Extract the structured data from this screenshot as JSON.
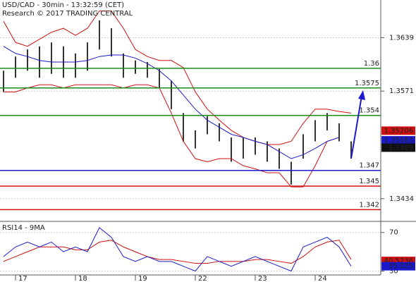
{
  "chart_data": [
    {
      "type": "candlestick",
      "title": "USD/CAD - 30min - 13:32:59 (CET)",
      "subtitle": "Research © 2017 TRADING CENTRAL",
      "categories": [
        null,
        "17",
        null,
        null,
        null,
        null,
        "18",
        null,
        null,
        null,
        null,
        "19",
        null,
        null,
        null,
        null,
        "22",
        null,
        null,
        null,
        null,
        "23",
        null,
        null,
        null,
        null,
        "24",
        null,
        null,
        null
      ],
      "high": [
        1.3597,
        1.3615,
        1.3624,
        1.3628,
        1.3633,
        1.3628,
        1.3619,
        1.3633,
        1.3661,
        1.3651,
        1.3619,
        1.361,
        1.3608,
        1.3599,
        1.3584,
        1.3543,
        1.3521,
        1.3539,
        1.353,
        1.3512,
        1.3512,
        1.3512,
        1.3507,
        1.3498,
        1.3481,
        1.3516,
        1.3534,
        1.3543,
        1.353,
        1.3507
      ],
      "low": [
        1.357,
        1.3588,
        1.3597,
        1.3588,
        1.3593,
        1.3588,
        1.3588,
        1.3597,
        1.3624,
        1.3615,
        1.3588,
        1.3593,
        1.3588,
        1.3575,
        1.3548,
        1.3507,
        1.3498,
        1.3516,
        1.3507,
        1.3481,
        1.3485,
        1.349,
        1.3481,
        1.3472,
        1.3452,
        1.3485,
        1.3507,
        1.3521,
        1.3507,
        1.3485
      ],
      "color": "#333333",
      "series": [
        {
          "color": "#d01010",
          "values": [
            1.366,
            1.3633,
            1.3628,
            1.3637,
            1.3646,
            1.3651,
            1.3642,
            1.3651,
            1.3673,
            1.3673,
            1.3651,
            1.3624,
            1.3615,
            1.361,
            1.361,
            1.3601,
            1.357,
            1.3548,
            1.3534,
            1.3521,
            1.3512,
            1.3507,
            1.3503,
            1.3503,
            1.3507,
            1.353,
            1.3548,
            1.3548,
            1.3545,
            1.3543
          ]
        },
        {
          "color": "#d01010",
          "values": [
            1.357,
            1.357,
            1.3575,
            1.3579,
            1.3579,
            1.3575,
            1.3579,
            1.3579,
            1.3579,
            1.3579,
            1.3575,
            1.3579,
            1.3579,
            1.3575,
            1.3543,
            1.3507,
            1.3485,
            1.3481,
            1.3485,
            1.3485,
            1.3476,
            1.3472,
            1.3467,
            1.3467,
            1.3449,
            1.3449,
            1.3476,
            1.3507,
            1.3512,
            null
          ]
        },
        {
          "color": "#1a1acc",
          "values": [
            1.3628,
            1.3619,
            1.3615,
            1.361,
            1.3608,
            1.3608,
            1.3608,
            1.361,
            1.3615,
            1.3617,
            1.3617,
            1.3613,
            1.3606,
            1.3597,
            1.3584,
            1.3566,
            1.3548,
            1.3534,
            1.3525,
            1.3516,
            1.3512,
            1.3507,
            1.3503,
            1.3494,
            1.3485,
            1.349,
            1.3498,
            1.3507,
            1.3512,
            null
          ]
        }
      ],
      "levels": [
        {
          "value": 1.36,
          "color": "#1a8c1a"
        },
        {
          "value": 1.3575,
          "color": "#1a8c1a"
        },
        {
          "value": 1.354,
          "color": "#1a8c1a"
        },
        {
          "value": 1.347,
          "color": "#1a1acc"
        },
        {
          "value": 1.345,
          "color": "#d01010"
        },
        {
          "value": 1.342,
          "color": "#d01010"
        }
      ],
      "price_markers": [
        {
          "value": 1.35206,
          "color": "#d01010"
        },
        {
          "value": 1.35083,
          "color": "#1a1acc"
        },
        {
          "value": 1.3499,
          "color": "#111111"
        }
      ],
      "ylim": [
        1.3406,
        1.3687
      ],
      "yticks": [
        1.3639,
        1.3571,
        1.3434
      ],
      "grid": true
    },
    {
      "type": "line",
      "title": "RSI14 - 9MA",
      "series": [
        {
          "color": "#d01010",
          "values": [
            40,
            45,
            50,
            55,
            55,
            55,
            52,
            52,
            60,
            62,
            55,
            50,
            45,
            42,
            42,
            40,
            38,
            38,
            40,
            40,
            40,
            42,
            42,
            40,
            38,
            45,
            55,
            60,
            62,
            42
          ]
        },
        {
          "color": "#1a1acc",
          "values": [
            45,
            55,
            60,
            55,
            60,
            50,
            55,
            50,
            75,
            65,
            45,
            40,
            45,
            40,
            40,
            35,
            30,
            45,
            40,
            35,
            40,
            45,
            40,
            35,
            30,
            55,
            60,
            65,
            55,
            35
          ]
        }
      ],
      "markers": [
        {
          "value": 40.5236,
          "color": "#d01010"
        },
        {
          "value": 35.025,
          "color": "#1a1acc"
        }
      ],
      "ylim": [
        26,
        80
      ],
      "yticks": [
        70,
        30
      ],
      "grid": true
    }
  ]
}
